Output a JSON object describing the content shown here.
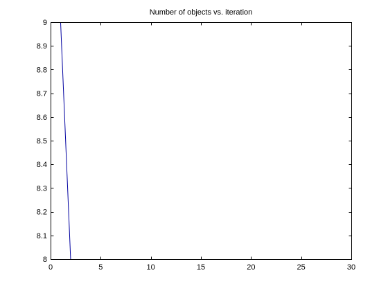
{
  "chart_data": {
    "type": "line",
    "title": "Number of objects vs. iteration",
    "xlabel": "",
    "ylabel": "",
    "xlim": [
      0,
      30
    ],
    "ylim": [
      8,
      9
    ],
    "xticks": [
      0,
      5,
      10,
      15,
      20,
      25,
      30
    ],
    "yticks": [
      8,
      8.1,
      8.2,
      8.3,
      8.4,
      8.5,
      8.6,
      8.7,
      8.8,
      8.9,
      9
    ],
    "xtick_labels": [
      "0",
      "5",
      "10",
      "15",
      "20",
      "25",
      "30"
    ],
    "ytick_labels": [
      "8",
      "8.1",
      "8.2",
      "8.3",
      "8.4",
      "8.5",
      "8.6",
      "8.7",
      "8.8",
      "8.9",
      "9"
    ],
    "grid": false,
    "series": [
      {
        "color": "#0000a0",
        "x": [
          1,
          2
        ],
        "y": [
          9,
          8
        ]
      }
    ]
  }
}
